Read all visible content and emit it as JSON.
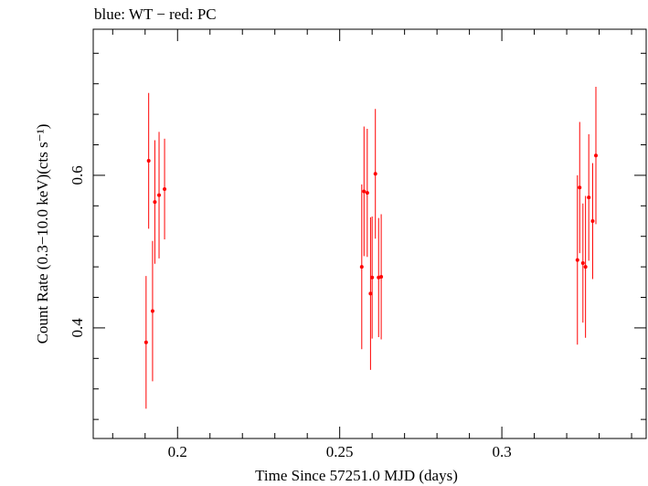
{
  "chart_data": {
    "type": "scatter",
    "title": "blue: WT − red: PC",
    "xlabel": "Time Since 57251.0 MJD (days)",
    "ylabel": "Count Rate (0.3−10.0 keV)(cts s⁻¹)",
    "xlim": [
      0.174,
      0.3445
    ],
    "ylim": [
      0.255,
      0.7915
    ],
    "x_ticks": [
      {
        "value": 0.2,
        "label": "0.2"
      },
      {
        "value": 0.25,
        "label": "0.25"
      },
      {
        "value": 0.3,
        "label": "0.3"
      }
    ],
    "y_ticks": [
      {
        "value": 0.4,
        "label": "0.4"
      },
      {
        "value": 0.6,
        "label": "0.6"
      }
    ],
    "series": [
      {
        "name": "PC",
        "color": "#ff0000",
        "points": [
          {
            "x": 0.1903,
            "y": 0.381,
            "err": 0.087
          },
          {
            "x": 0.1911,
            "y": 0.619,
            "err": 0.089
          },
          {
            "x": 0.1923,
            "y": 0.422,
            "err": 0.092
          },
          {
            "x": 0.193,
            "y": 0.565,
            "err": 0.081
          },
          {
            "x": 0.1943,
            "y": 0.574,
            "err": 0.083
          },
          {
            "x": 0.196,
            "y": 0.582,
            "err": 0.066
          },
          {
            "x": 0.2568,
            "y": 0.48,
            "err": 0.108
          },
          {
            "x": 0.2575,
            "y": 0.579,
            "err": 0.085
          },
          {
            "x": 0.2585,
            "y": 0.577,
            "err": 0.084
          },
          {
            "x": 0.2595,
            "y": 0.445,
            "err": 0.1
          },
          {
            "x": 0.26,
            "y": 0.466,
            "err": 0.08
          },
          {
            "x": 0.261,
            "y": 0.602,
            "err": 0.085
          },
          {
            "x": 0.262,
            "y": 0.466,
            "err": 0.078
          },
          {
            "x": 0.2628,
            "y": 0.467,
            "err": 0.082
          },
          {
            "x": 0.3233,
            "y": 0.489,
            "err": 0.111
          },
          {
            "x": 0.324,
            "y": 0.584,
            "err": 0.086
          },
          {
            "x": 0.325,
            "y": 0.485,
            "err": 0.078
          },
          {
            "x": 0.3258,
            "y": 0.48,
            "err": 0.093
          },
          {
            "x": 0.3268,
            "y": 0.571,
            "err": 0.083
          },
          {
            "x": 0.328,
            "y": 0.54,
            "err": 0.076
          },
          {
            "x": 0.329,
            "y": 0.626,
            "err": 0.09
          }
        ]
      }
    ]
  }
}
